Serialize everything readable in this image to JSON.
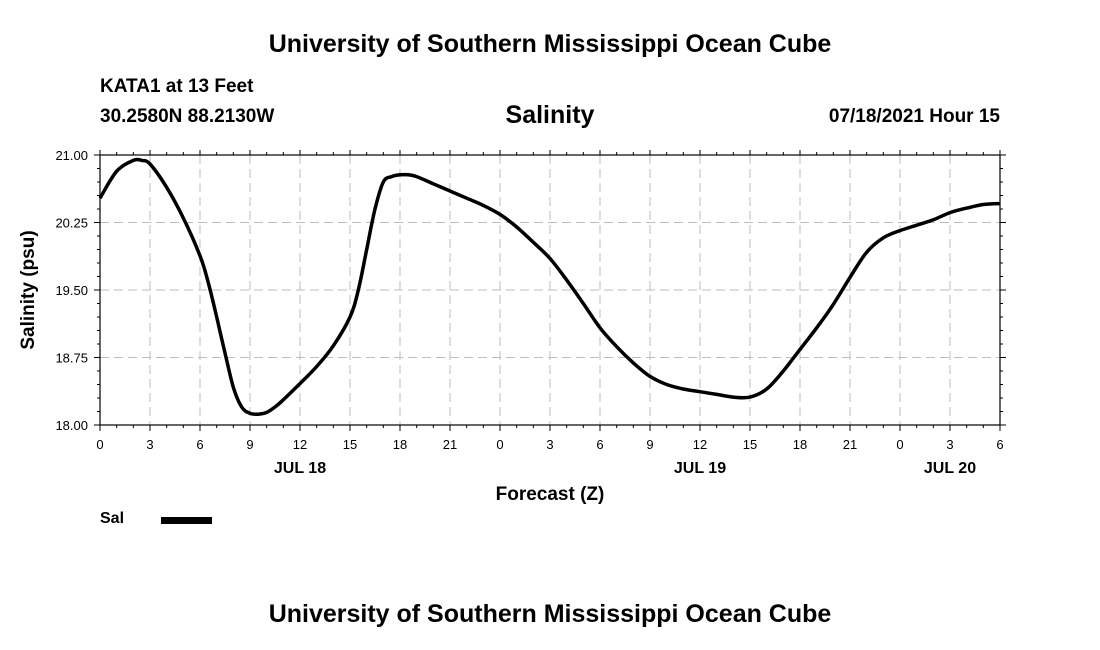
{
  "header": {
    "title": "University of Southern Mississippi Ocean Cube",
    "station": "KATA1 at 13 Feet",
    "coords": "30.2580N  88.2130W",
    "timestamp": "07/18/2021 Hour 15"
  },
  "footer": {
    "title": "University of Southern Mississippi Ocean Cube"
  },
  "chart_data": {
    "type": "line",
    "title": "Salinity",
    "xlabel": "Forecast (Z)",
    "ylabel": "Salinity (psu)",
    "x_unit": "forecast hour from 07/18/2021 00Z",
    "xlim": [
      0,
      54
    ],
    "ylim": [
      18.0,
      21.0
    ],
    "yticks": [
      "18.00",
      "18.75",
      "19.50",
      "20.25",
      "21.00"
    ],
    "xtick_labels": [
      "0",
      "3",
      "6",
      "9",
      "12",
      "15",
      "18",
      "21",
      "0",
      "3",
      "6",
      "9",
      "12",
      "15",
      "18",
      "21",
      "0",
      "3",
      "6"
    ],
    "date_labels": [
      {
        "label": "JUL 18",
        "x": 12
      },
      {
        "label": "JUL 19",
        "x": 36
      },
      {
        "label": "JUL 20",
        "x": 51
      }
    ],
    "grid": true,
    "legend_placement": "bottom-left",
    "series": [
      {
        "name": "Sal",
        "color": "#000000",
        "x": [
          0,
          1,
          2,
          2.5,
          3,
          4,
          5,
          6,
          6.5,
          7,
          7.5,
          8,
          8.5,
          9,
          9.5,
          10,
          10.5,
          11,
          12,
          13,
          14,
          15,
          15.5,
          16,
          16.5,
          17,
          17.5,
          18,
          18.5,
          19,
          20,
          21,
          22,
          23,
          24,
          25,
          26,
          27,
          28,
          29,
          30,
          31,
          32,
          33,
          34,
          35,
          36,
          37,
          38,
          39,
          40,
          41,
          42,
          43,
          44,
          45,
          46,
          47,
          48,
          49,
          50,
          51,
          52,
          53,
          54
        ],
        "values": [
          20.52,
          20.82,
          20.94,
          20.94,
          20.9,
          20.64,
          20.3,
          19.88,
          19.58,
          19.2,
          18.8,
          18.42,
          18.2,
          18.13,
          18.12,
          18.14,
          18.2,
          18.28,
          18.46,
          18.65,
          18.88,
          19.2,
          19.5,
          19.95,
          20.4,
          20.7,
          20.76,
          20.78,
          20.78,
          20.76,
          20.68,
          20.6,
          20.52,
          20.44,
          20.34,
          20.2,
          20.03,
          19.85,
          19.61,
          19.35,
          19.08,
          18.87,
          18.69,
          18.54,
          18.45,
          18.4,
          18.37,
          18.34,
          18.31,
          18.31,
          18.4,
          18.6,
          18.84,
          19.08,
          19.34,
          19.64,
          19.92,
          20.08,
          20.16,
          20.22,
          20.28,
          20.36,
          20.41,
          20.45,
          20.46
        ]
      }
    ]
  }
}
